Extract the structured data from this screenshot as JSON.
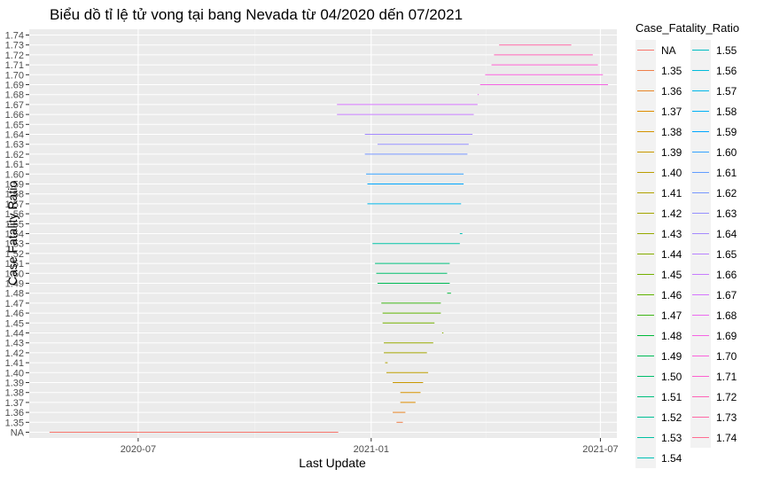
{
  "chart_data": {
    "type": "line",
    "title": "Biểu dồ tỉ lệ tử vong tại bang Nevada từ 04/2020 dến 07/2021",
    "xlabel": "Last Update",
    "ylabel": "Case Fatality Ratio",
    "x_ticks": [
      {
        "label": "2020-07",
        "date": "2020-07-01"
      },
      {
        "label": "2021-01",
        "date": "2021-01-01"
      },
      {
        "label": "2021-07",
        "date": "2021-07-01"
      }
    ],
    "xlim": [
      "2020-04-06",
      "2021-07-14"
    ],
    "y_categories": [
      "NA",
      "1.35",
      "1.36",
      "1.37",
      "1.38",
      "1.39",
      "1.40",
      "1.41",
      "1.42",
      "1.43",
      "1.44",
      "1.45",
      "1.46",
      "1.47",
      "1.48",
      "1.49",
      "1.50",
      "1.51",
      "1.52",
      "1.53",
      "1.54",
      "1.55",
      "1.56",
      "1.57",
      "1.58",
      "1.59",
      "1.60",
      "1.61",
      "1.62",
      "1.63",
      "1.64",
      "1.65",
      "1.66",
      "1.67",
      "1.68",
      "1.69",
      "1.70",
      "1.71",
      "1.72",
      "1.73",
      "1.74"
    ],
    "grid": true,
    "legend_title": "Case_Fatality_Ratio",
    "legend_position": "right",
    "legend_entries": [
      "NA",
      "1.35",
      "1.36",
      "1.37",
      "1.38",
      "1.39",
      "1.40",
      "1.41",
      "1.42",
      "1.43",
      "1.44",
      "1.45",
      "1.46",
      "1.47",
      "1.48",
      "1.49",
      "1.50",
      "1.51",
      "1.52",
      "1.53",
      "1.54",
      "1.55",
      "1.56",
      "1.57",
      "1.58",
      "1.59",
      "1.60",
      "1.61",
      "1.62",
      "1.63",
      "1.64",
      "1.65",
      "1.66",
      "1.67",
      "1.68",
      "1.69",
      "1.70",
      "1.71",
      "1.72",
      "1.73",
      "1.74"
    ],
    "segments": [
      {
        "level": "NA",
        "start": "2020-04-22",
        "end": "2020-12-06",
        "color": "#F8766D"
      },
      {
        "level": "1.35",
        "start": "2021-01-21",
        "end": "2021-01-26",
        "color": "#EF7F49"
      },
      {
        "level": "1.36",
        "start": "2021-01-18",
        "end": "2021-01-28",
        "color": "#E88526"
      },
      {
        "level": "1.37",
        "start": "2021-01-24",
        "end": "2021-02-05",
        "color": "#DE8C00"
      },
      {
        "level": "1.38",
        "start": "2021-01-24",
        "end": "2021-02-09",
        "color": "#D39200"
      },
      {
        "level": "1.39",
        "start": "2021-01-18",
        "end": "2021-02-11",
        "color": "#C99800"
      },
      {
        "level": "1.40",
        "start": "2021-01-13",
        "end": "2021-02-15",
        "color": "#BB9D00"
      },
      {
        "level": "1.41",
        "start": "2021-01-12",
        "end": "2021-01-14",
        "color": "#B1A200"
      },
      {
        "level": "1.42",
        "start": "2021-01-11",
        "end": "2021-02-14",
        "color": "#A3A500"
      },
      {
        "level": "1.43",
        "start": "2021-01-11",
        "end": "2021-02-19",
        "color": "#96A900"
      },
      {
        "level": "1.44",
        "start": "2021-02-26",
        "end": "2021-02-27",
        "color": "#85AD00"
      },
      {
        "level": "1.45",
        "start": "2021-01-10",
        "end": "2021-02-20",
        "color": "#73B000"
      },
      {
        "level": "1.46",
        "start": "2021-01-10",
        "end": "2021-02-25",
        "color": "#5EB300"
      },
      {
        "level": "1.47",
        "start": "2021-01-09",
        "end": "2021-02-25",
        "color": "#3FB618"
      },
      {
        "level": "1.48",
        "start": "2021-03-02",
        "end": "2021-03-05",
        "color": "#00B93A"
      },
      {
        "level": "1.49",
        "start": "2021-01-06",
        "end": "2021-03-04",
        "color": "#00BB55"
      },
      {
        "level": "1.50",
        "start": "2021-01-05",
        "end": "2021-03-02",
        "color": "#00BD6A"
      },
      {
        "level": "1.51",
        "start": "2021-01-04",
        "end": "2021-03-04",
        "color": "#00BF7D"
      },
      {
        "level": "1.53",
        "start": "2021-01-02",
        "end": "2021-03-12",
        "color": "#00C1A3"
      },
      {
        "level": "1.54",
        "start": "2021-03-12",
        "end": "2021-03-14",
        "color": "#00C0B5"
      },
      {
        "level": "1.57",
        "start": "2020-12-29",
        "end": "2021-03-13",
        "color": "#00B7E9"
      },
      {
        "level": "1.59",
        "start": "2020-12-29",
        "end": "2021-03-15",
        "color": "#00A6FF"
      },
      {
        "level": "1.60",
        "start": "2020-12-28",
        "end": "2021-03-15",
        "color": "#35A2FF"
      },
      {
        "level": "1.62",
        "start": "2020-12-27",
        "end": "2021-03-18",
        "color": "#7897FF"
      },
      {
        "level": "1.63",
        "start": "2021-01-06",
        "end": "2021-03-19",
        "color": "#9590FF"
      },
      {
        "level": "1.64",
        "start": "2020-12-27",
        "end": "2021-03-22",
        "color": "#A58AFF"
      },
      {
        "level": "1.66",
        "start": "2020-12-05",
        "end": "2021-03-23",
        "color": "#C77CFF"
      },
      {
        "level": "1.67",
        "start": "2020-12-05",
        "end": "2021-03-26",
        "color": "#D575FE"
      },
      {
        "level": "1.68",
        "start": "2021-03-26",
        "end": "2021-03-27",
        "color": "#EB6BEF"
      },
      {
        "level": "1.69",
        "start": "2021-03-28",
        "end": "2021-07-07",
        "color": "#F564E3"
      },
      {
        "level": "1.70",
        "start": "2021-04-01",
        "end": "2021-07-03",
        "color": "#FA62DB"
      },
      {
        "level": "1.71",
        "start": "2021-04-06",
        "end": "2021-06-29",
        "color": "#FE61CF"
      },
      {
        "level": "1.72",
        "start": "2021-04-08",
        "end": "2021-06-25",
        "color": "#FF63B6"
      },
      {
        "level": "1.73",
        "start": "2021-04-12",
        "end": "2021-06-08",
        "color": "#FF67A4"
      }
    ]
  }
}
